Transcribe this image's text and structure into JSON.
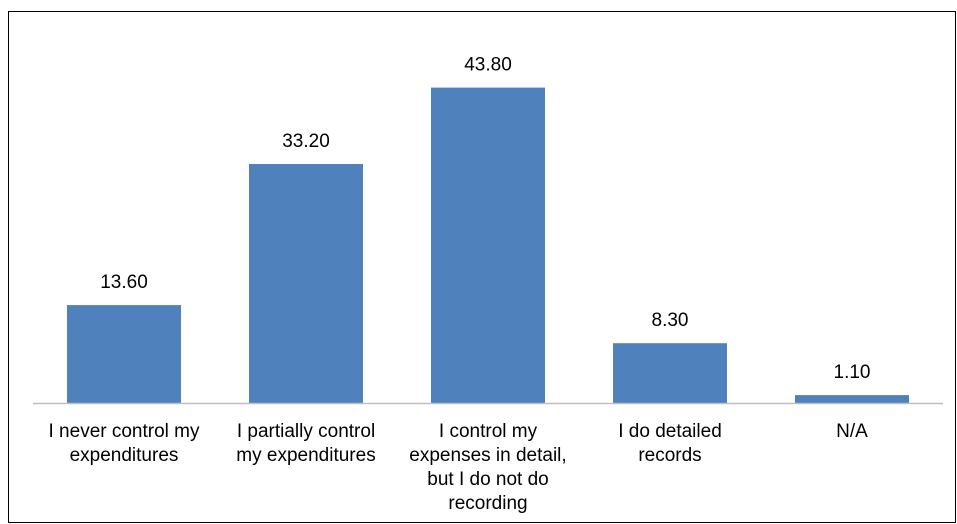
{
  "chart_data": {
    "type": "bar",
    "categories": [
      [
        "I never control my",
        "expenditures"
      ],
      [
        "I partially control",
        "my expenditures"
      ],
      [
        "I control my",
        "expenses in detail,",
        "but I do not do",
        "recording"
      ],
      [
        "I do detailed",
        "records"
      ],
      [
        "N/A"
      ]
    ],
    "values": [
      13.6,
      33.2,
      43.8,
      8.3,
      1.1
    ],
    "data_labels": [
      "13.60",
      "33.20",
      "43.80",
      "8.30",
      "1.10"
    ],
    "title": "",
    "xlabel": "",
    "ylabel": "",
    "ylim": [
      0,
      45
    ],
    "grid": false,
    "legend": "none",
    "bar_color": "#4f81bd",
    "axis_color": "#bfbfbf"
  }
}
